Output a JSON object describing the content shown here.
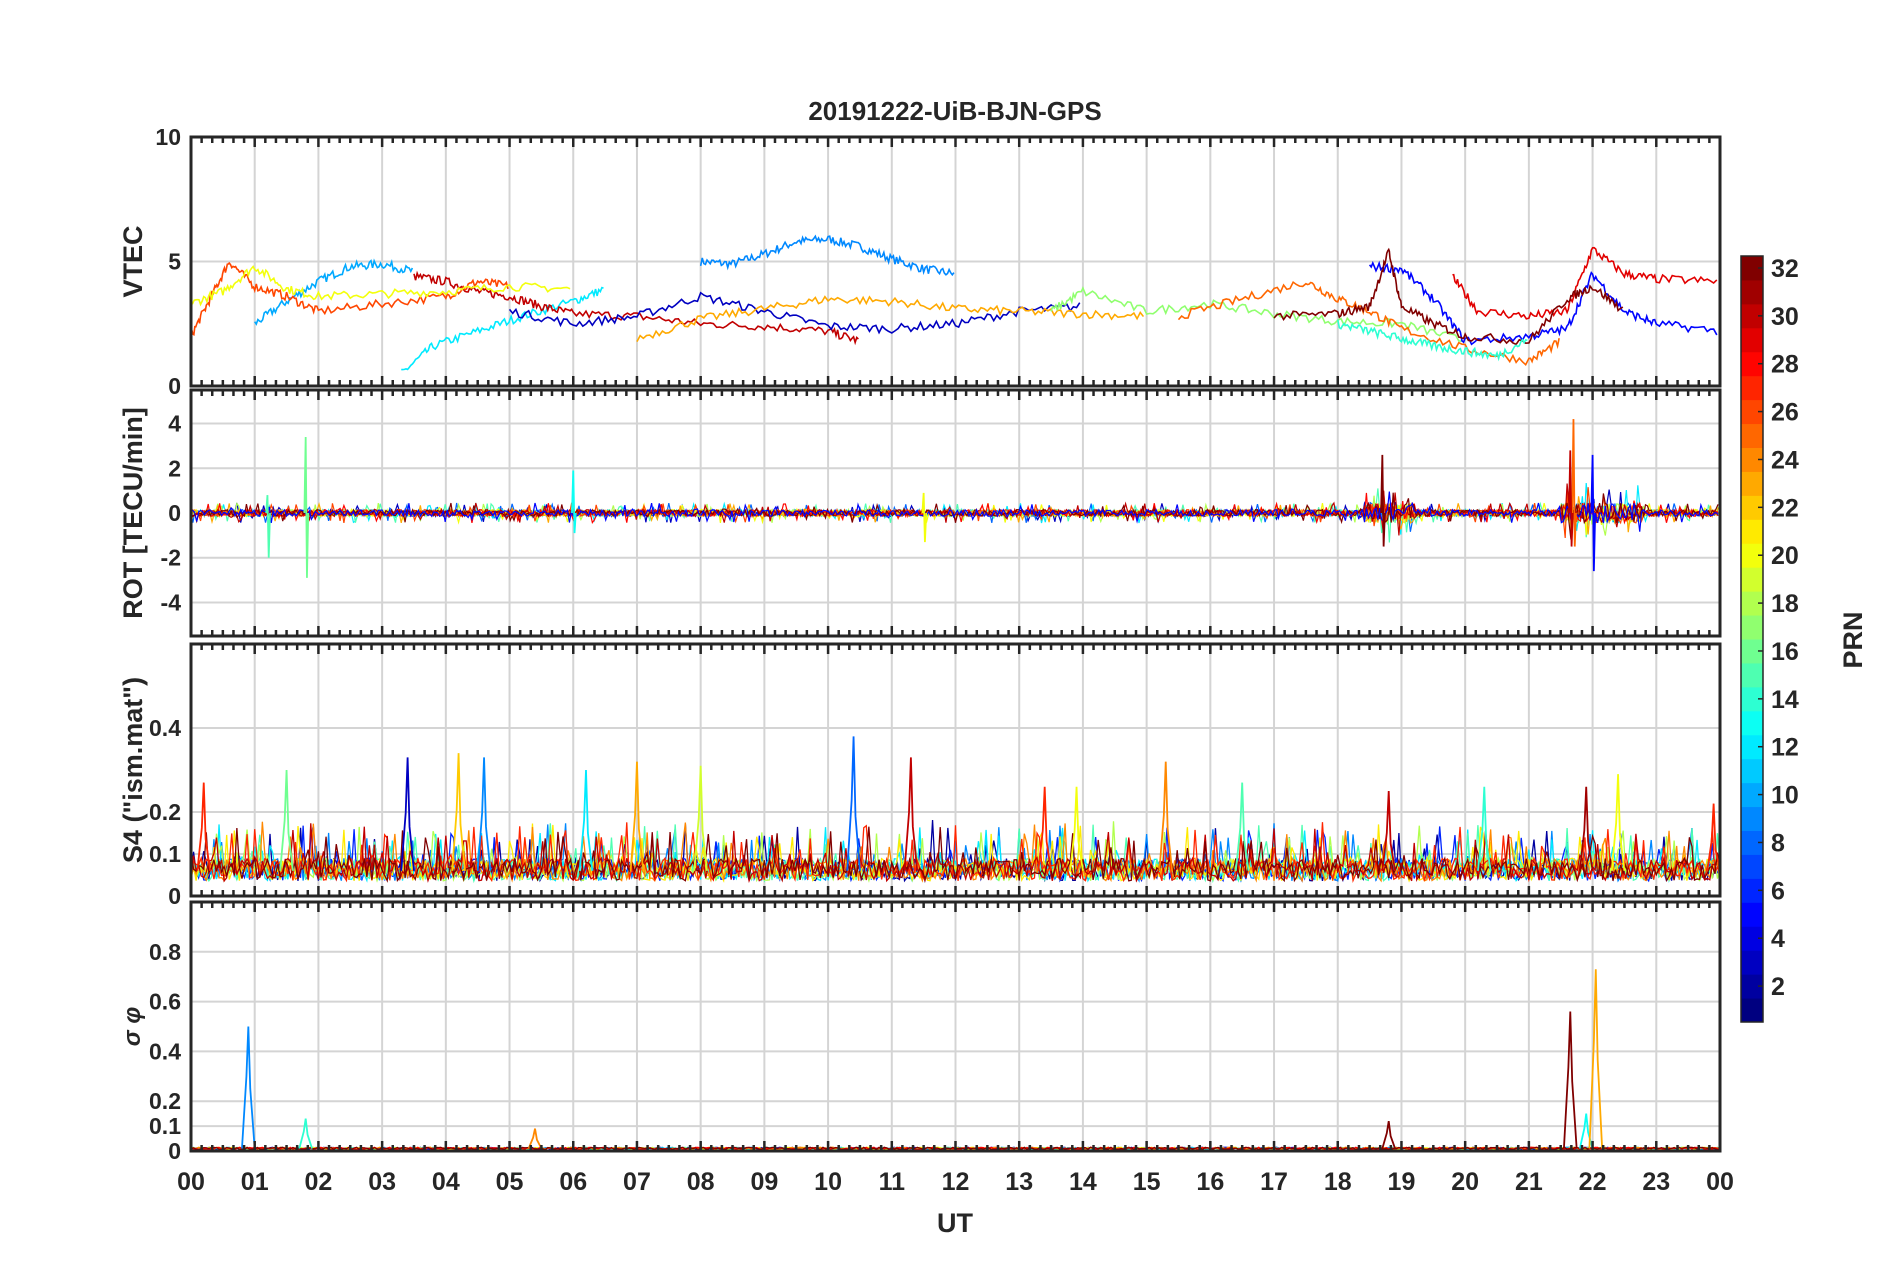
{
  "chart_data": {
    "type": "line",
    "title": "20191222-UiB-BJN-GPS",
    "xlabel": "UT",
    "xlim": [
      0,
      24
    ],
    "x_tick_labels": [
      "00",
      "01",
      "02",
      "03",
      "04",
      "05",
      "06",
      "07",
      "08",
      "09",
      "10",
      "11",
      "12",
      "13",
      "14",
      "15",
      "16",
      "17",
      "18",
      "19",
      "20",
      "21",
      "22",
      "23",
      "00"
    ],
    "colorbar": {
      "label": "PRN",
      "range": [
        1,
        32
      ],
      "tick_labels": [
        "2",
        "4",
        "6",
        "8",
        "10",
        "12",
        "14",
        "16",
        "18",
        "20",
        "22",
        "24",
        "26",
        "28",
        "30",
        "32"
      ],
      "tick_values": [
        2,
        4,
        6,
        8,
        10,
        12,
        14,
        16,
        18,
        20,
        22,
        24,
        26,
        28,
        30,
        32
      ],
      "colormap": "jet"
    },
    "panels": [
      {
        "name": "vtec",
        "ylabel": "VTEC",
        "ylim": [
          0,
          10
        ],
        "ytick_values": [
          0,
          5,
          10
        ],
        "ytick_labels": [
          "0",
          "5",
          "10"
        ],
        "series": [
          {
            "prn": 9,
            "x": [
              8.0,
              8.5,
              9.0,
              9.5,
              10.0,
              10.5,
              11.0,
              11.5,
              12.0
            ],
            "y": [
              5.0,
              4.9,
              5.3,
              5.8,
              5.9,
              5.6,
              5.1,
              4.7,
              4.5
            ]
          },
          {
            "prn": 10,
            "x": [
              1.0,
              1.5,
              2.0,
              2.5,
              3.0,
              3.5
            ],
            "y": [
              2.5,
              3.4,
              4.2,
              4.8,
              4.9,
              4.6
            ]
          },
          {
            "prn": 12,
            "x": [
              3.3,
              3.8,
              4.5,
              5.2,
              6.0,
              6.5
            ],
            "y": [
              0.5,
              1.6,
              2.2,
              2.8,
              3.4,
              3.9
            ]
          },
          {
            "prn": 30,
            "x": [
              3.5,
              4.0,
              4.5,
              5.0,
              5.5,
              6.0,
              7.0,
              8.0,
              9.0,
              10.0,
              10.5
            ],
            "y": [
              4.4,
              4.2,
              3.8,
              3.6,
              3.2,
              2.9,
              2.8,
              2.5,
              2.4,
              2.2,
              1.8
            ]
          },
          {
            "prn": 26,
            "x": [
              0.0,
              0.3,
              0.6,
              1.0,
              1.5,
              2.0,
              3.0,
              4.0,
              4.5,
              5.0
            ],
            "y": [
              2.0,
              3.5,
              5.0,
              4.0,
              3.6,
              3.0,
              3.3,
              3.6,
              4.2,
              4.0
            ]
          },
          {
            "prn": 20,
            "x": [
              0.0,
              0.5,
              1.0,
              1.5,
              2.0,
              3.0,
              4.0,
              5.0,
              6.0
            ],
            "y": [
              3.3,
              3.8,
              4.8,
              3.9,
              3.6,
              3.7,
              3.8,
              4.0,
              3.9
            ]
          },
          {
            "prn": 3,
            "x": [
              5.0,
              6.0,
              7.0,
              8.0,
              9.0,
              10.0,
              11.0,
              12.0,
              13.0,
              14.0
            ],
            "y": [
              3.0,
              2.5,
              2.8,
              3.6,
              3.0,
              2.4,
              2.3,
              2.5,
              3.0,
              3.2
            ]
          },
          {
            "prn": 23,
            "x": [
              7.0,
              8.0,
              9.0,
              10.0,
              11.0,
              12.0,
              13.0,
              14.0,
              15.0
            ],
            "y": [
              1.9,
              2.7,
              3.1,
              3.5,
              3.4,
              3.1,
              3.0,
              2.9,
              2.8
            ]
          },
          {
            "prn": 17,
            "x": [
              13.5,
              14.0,
              15.0,
              16.0,
              17.0,
              18.0,
              19.0,
              20.0
            ],
            "y": [
              3.0,
              3.8,
              3.0,
              3.3,
              2.9,
              2.6,
              2.5,
              1.8
            ]
          },
          {
            "prn": 25,
            "x": [
              15.5,
              16.5,
              17.5,
              18.0,
              18.5,
              19.0,
              20.0,
              21.0,
              21.5
            ],
            "y": [
              2.8,
              3.5,
              4.2,
              3.5,
              3.0,
              2.3,
              1.5,
              1.0,
              1.8
            ]
          },
          {
            "prn": 29,
            "x": [
              19.8,
              20.2,
              21.0,
              21.6,
              22.0,
              22.5,
              23.0,
              24.0
            ],
            "y": [
              4.4,
              3.0,
              2.8,
              3.0,
              5.5,
              4.5,
              4.3,
              4.2
            ]
          },
          {
            "prn": 5,
            "x": [
              18.5,
              19.0,
              19.5,
              20.0,
              21.0,
              21.6,
              22.0,
              22.5,
              23.0,
              24.0
            ],
            "y": [
              4.8,
              4.7,
              3.5,
              1.8,
              2.0,
              2.3,
              4.5,
              3.0,
              2.5,
              2.2
            ]
          },
          {
            "prn": 32,
            "x": [
              17.0,
              18.0,
              18.5,
              18.8,
              19.0,
              19.5,
              20.0,
              21.0,
              21.6,
              22.0,
              22.5
            ],
            "y": [
              2.8,
              2.9,
              3.2,
              5.4,
              3.2,
              2.5,
              2.0,
              1.8,
              3.5,
              4.0,
              3.0
            ]
          },
          {
            "prn": 14,
            "x": [
              18.0,
              18.5,
              19.0,
              19.5,
              20.0,
              20.5,
              21.0
            ],
            "y": [
              2.5,
              2.2,
              1.9,
              1.6,
              1.4,
              1.2,
              1.9
            ]
          }
        ]
      },
      {
        "name": "rot",
        "ylabel": "ROT [TECU/min]",
        "ylim": [
          -5.5,
          5.5
        ],
        "ytick_values": [
          -4,
          -2,
          0,
          2,
          4
        ],
        "ytick_labels": [
          "-4",
          "-2",
          "0",
          "2",
          "4"
        ],
        "spikes": [
          {
            "prn": 16,
            "x": 1.8,
            "min": -2.9,
            "max": 3.4
          },
          {
            "prn": 15,
            "x": 1.2,
            "min": -2.0,
            "max": 0.8
          },
          {
            "prn": 13,
            "x": 6.0,
            "min": -0.9,
            "max": 1.9
          },
          {
            "prn": 32,
            "x": 18.7,
            "min": -1.5,
            "max": 2.6
          },
          {
            "prn": 25,
            "x": 21.7,
            "min": -1.5,
            "max": 4.2
          },
          {
            "prn": 5,
            "x": 22.0,
            "min": -2.6,
            "max": 2.6
          },
          {
            "prn": 30,
            "x": 21.65,
            "min": -1.5,
            "max": 2.8
          },
          {
            "prn": 20,
            "x": 11.5,
            "min": -1.3,
            "max": 0.9
          }
        ],
        "noise_amplitude": 0.3
      },
      {
        "name": "s4",
        "ylabel": "S4 (\"ism.mat\")",
        "ylim": [
          0,
          0.6
        ],
        "ytick_values": [
          0,
          0.1,
          0.2,
          0.4
        ],
        "ytick_labels": [
          "0",
          "0.1",
          "0.2",
          "0.4"
        ],
        "baseline": 0.06,
        "peaks": [
          {
            "prn": 27,
            "x": 0.2,
            "y": 0.27
          },
          {
            "prn": 16,
            "x": 1.5,
            "y": 0.3
          },
          {
            "prn": 3,
            "x": 3.4,
            "y": 0.33
          },
          {
            "prn": 22,
            "x": 4.2,
            "y": 0.34
          },
          {
            "prn": 9,
            "x": 4.6,
            "y": 0.33
          },
          {
            "prn": 12,
            "x": 6.2,
            "y": 0.3
          },
          {
            "prn": 23,
            "x": 7.0,
            "y": 0.32
          },
          {
            "prn": 19,
            "x": 8.0,
            "y": 0.31
          },
          {
            "prn": 8,
            "x": 10.4,
            "y": 0.38
          },
          {
            "prn": 30,
            "x": 11.3,
            "y": 0.33
          },
          {
            "prn": 27,
            "x": 13.4,
            "y": 0.26
          },
          {
            "prn": 20,
            "x": 13.9,
            "y": 0.26
          },
          {
            "prn": 24,
            "x": 15.3,
            "y": 0.32
          },
          {
            "prn": 15,
            "x": 16.5,
            "y": 0.27
          },
          {
            "prn": 30,
            "x": 18.8,
            "y": 0.25
          },
          {
            "prn": 14,
            "x": 20.3,
            "y": 0.26
          },
          {
            "prn": 31,
            "x": 21.9,
            "y": 0.26
          },
          {
            "prn": 20,
            "x": 22.4,
            "y": 0.29
          },
          {
            "prn": 27,
            "x": 23.9,
            "y": 0.22
          }
        ]
      },
      {
        "name": "sigma_phi",
        "ylabel": "σ φ",
        "ylim": [
          0,
          1
        ],
        "ytick_values": [
          0,
          0.1,
          0.2,
          0.4,
          0.6,
          0.8
        ],
        "ytick_labels": [
          "0",
          "0.1",
          "0.2",
          "0.4",
          "0.6",
          "0.8"
        ],
        "baseline": 0.01,
        "peaks": [
          {
            "prn": 9,
            "x": 0.9,
            "y": 0.5
          },
          {
            "prn": 14,
            "x": 1.8,
            "y": 0.13
          },
          {
            "prn": 24,
            "x": 5.4,
            "y": 0.09
          },
          {
            "prn": 32,
            "x": 18.8,
            "y": 0.12
          },
          {
            "prn": 32,
            "x": 21.65,
            "y": 0.56
          },
          {
            "prn": 13,
            "x": 21.9,
            "y": 0.15
          },
          {
            "prn": 23,
            "x": 22.05,
            "y": 0.73
          }
        ]
      }
    ]
  }
}
